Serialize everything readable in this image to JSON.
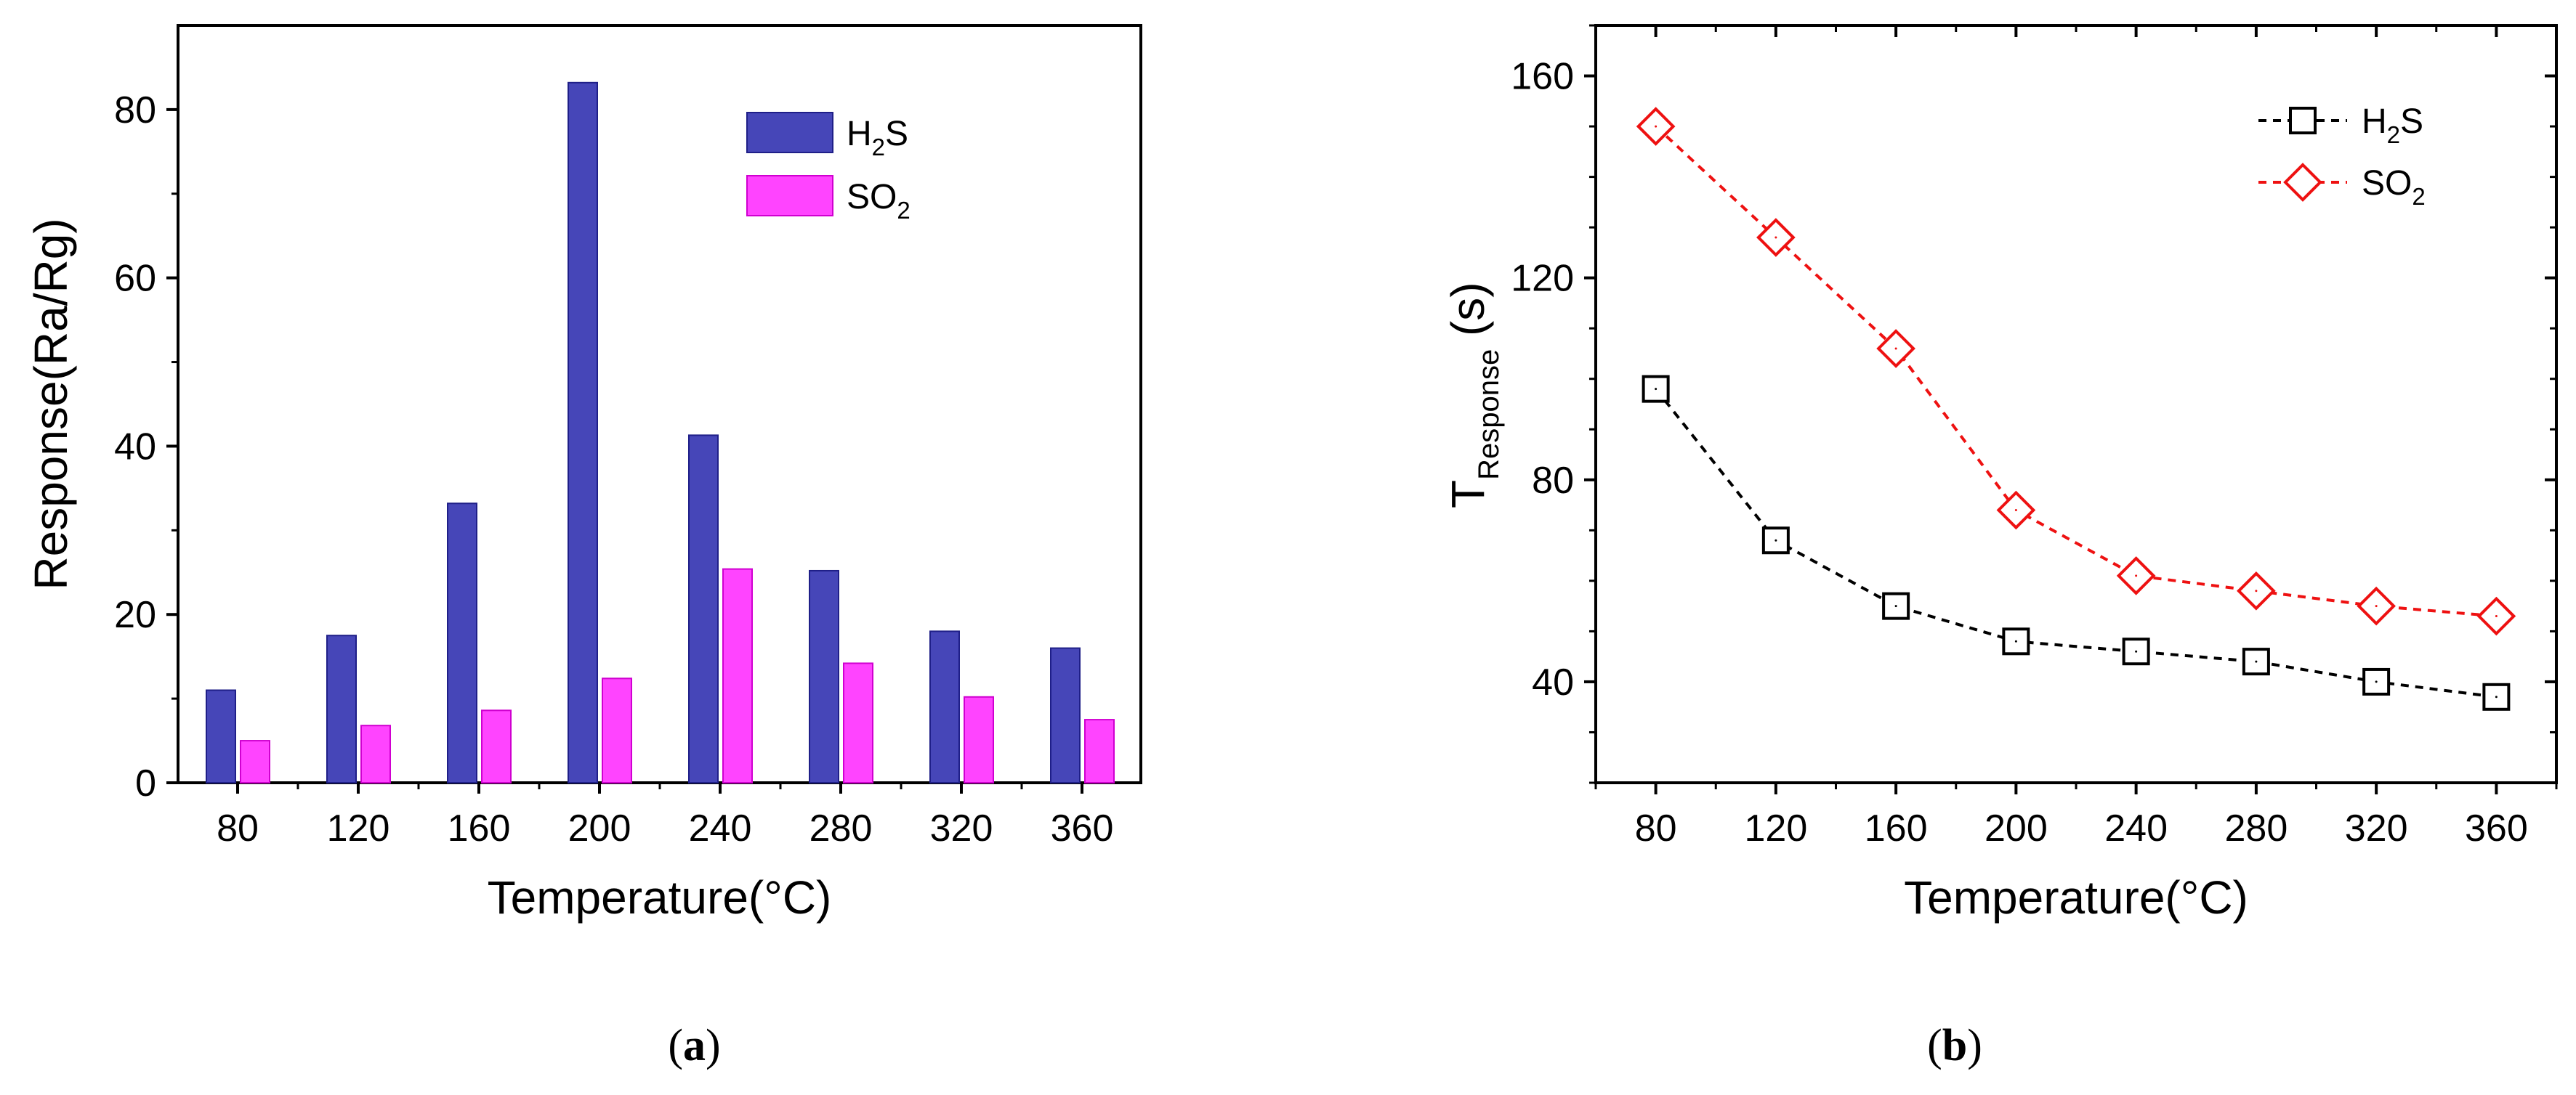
{
  "chart_data": [
    {
      "type": "bar",
      "panel_label": "a",
      "xlabel": "Temperature(°C)",
      "ylabel": "Response(Ra/Rg)",
      "ylim": [
        0,
        90
      ],
      "yticks": [
        0,
        20,
        40,
        60,
        80
      ],
      "categories": [
        "80",
        "120",
        "160",
        "200",
        "240",
        "280",
        "320",
        "360"
      ],
      "series": [
        {
          "name": "H2S",
          "label_main": "H",
          "label_sub": "2",
          "label_tail": "S",
          "color": "#4646b8",
          "stroke": "#1f1f88",
          "values": [
            11,
            17.5,
            33.2,
            83.2,
            41.3,
            25.2,
            18,
            16
          ]
        },
        {
          "name": "SO2",
          "label_main": "SO",
          "label_sub": "2",
          "label_tail": "",
          "color": "#ff44ff",
          "stroke": "#d000d0",
          "values": [
            5,
            6.8,
            8.6,
            12.4,
            25.4,
            14.2,
            10.2,
            7.5
          ]
        }
      ],
      "legend_position": "top-right"
    },
    {
      "type": "line",
      "panel_label": "b",
      "xlabel": "Temperature(°C)",
      "ylabel_main": "T",
      "ylabel_sub": "Response",
      "ylabel_unit": "(s)",
      "xlim": [
        60,
        380
      ],
      "ylim": [
        20,
        170
      ],
      "xticks": [
        80,
        120,
        160,
        200,
        240,
        280,
        320,
        360
      ],
      "yticks": [
        40,
        80,
        120,
        160
      ],
      "x": [
        80,
        120,
        160,
        200,
        240,
        280,
        320,
        360
      ],
      "series": [
        {
          "name": "H2S",
          "label_main": "H",
          "label_sub": "2",
          "label_tail": "S",
          "marker": "square",
          "color": "#000000",
          "values": [
            98,
            68,
            55,
            48,
            46,
            44,
            40,
            37
          ]
        },
        {
          "name": "SO2",
          "label_main": "SO",
          "label_sub": "2",
          "label_tail": "",
          "marker": "diamond",
          "color": "#ee1111",
          "values": [
            150,
            128,
            106,
            74,
            61,
            58,
            55,
            53
          ]
        }
      ],
      "legend_position": "top-right"
    }
  ]
}
